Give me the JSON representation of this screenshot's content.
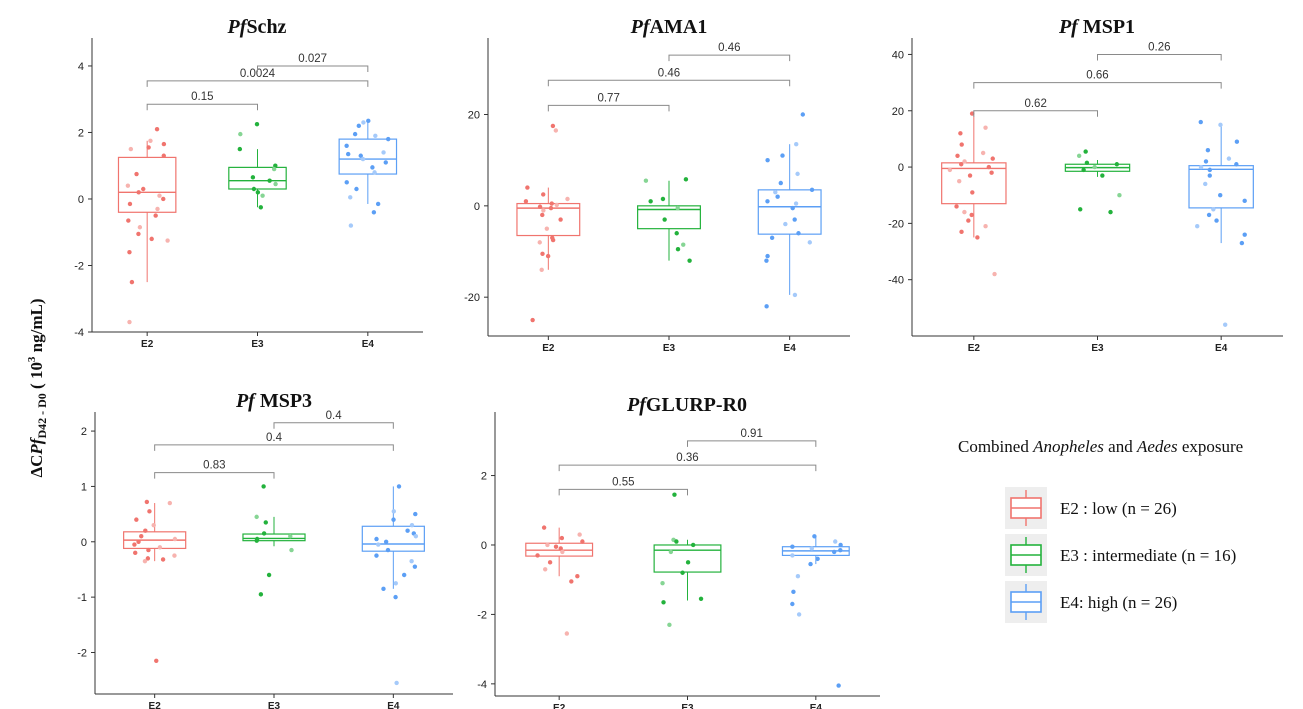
{
  "colors": {
    "E2": "#f0746e",
    "E3": "#23b23c",
    "E4": "#5c9ff5"
  },
  "y_axis_label": {
    "prefix": "ΔC",
    "italic": "Pf",
    "sub": "D42 - D0",
    "unit_open": " ( 10",
    "sup": "3",
    "unit_close": " ng/mL)"
  },
  "legend": {
    "title_parts": [
      "Combined ",
      "Anopheles",
      " and ",
      "Aedes",
      " exposure"
    ],
    "items": [
      {
        "group": "E2",
        "label": "E2 : low  (n = 26)"
      },
      {
        "group": "E3",
        "label": "E3 : intermediate (n = 16)"
      },
      {
        "group": "E4",
        "label": "E4: high (n = 26)"
      }
    ]
  },
  "chart_data": [
    {
      "type": "box",
      "title_italic": "Pf",
      "title_rest": "Schz",
      "categories": [
        "E2",
        "E3",
        "E4"
      ],
      "yticks": [
        -4,
        -2,
        0,
        2,
        4
      ],
      "ylim": [
        -4,
        4.6
      ],
      "boxes": [
        {
          "group": "E2",
          "q1": -0.4,
          "median": 0.2,
          "q3": 1.25,
          "whisker_low": -2.5,
          "whisker_high": 1.75
        },
        {
          "group": "E3",
          "q1": 0.3,
          "median": 0.55,
          "q3": 0.95,
          "whisker_low": -0.25,
          "whisker_high": 1.5
        },
        {
          "group": "E4",
          "q1": 0.75,
          "median": 1.2,
          "q3": 1.8,
          "whisker_low": -0.15,
          "whisker_high": 2.4
        }
      ],
      "points": {
        "E2": [
          2.1,
          1.75,
          1.65,
          1.55,
          1.5,
          1.3,
          0.75,
          0.4,
          0.3,
          0.2,
          0.1,
          0.0,
          -0.15,
          -0.3,
          -0.5,
          -0.65,
          -0.85,
          -1.05,
          -1.2,
          -1.25,
          -1.6,
          -2.5,
          -3.7
        ],
        "E3": [
          2.25,
          1.95,
          1.5,
          1.0,
          0.9,
          0.65,
          0.55,
          0.45,
          0.3,
          0.2,
          0.1,
          -0.25
        ],
        "E4": [
          2.35,
          2.3,
          2.2,
          1.95,
          1.9,
          1.8,
          1.6,
          1.4,
          1.35,
          1.3,
          1.2,
          1.1,
          0.95,
          0.8,
          0.5,
          0.3,
          0.05,
          -0.15,
          -0.4,
          -0.8
        ]
      },
      "comparisons": [
        {
          "from": "E2",
          "to": "E3",
          "label": "0.15",
          "y": 2.85
        },
        {
          "from": "E2",
          "to": "E4",
          "label": "0.0024",
          "y": 3.55
        },
        {
          "from": "E3",
          "to": "E4",
          "label": "0.027",
          "y": 4.0
        }
      ]
    },
    {
      "type": "box",
      "title_italic": "Pf",
      "title_rest": "AMA1",
      "categories": [
        "E2",
        "E3",
        "E4"
      ],
      "yticks": [
        -20,
        0,
        20
      ],
      "ylim": [
        -28.5,
        35
      ],
      "boxes": [
        {
          "group": "E2",
          "q1": -6.5,
          "median": -0.5,
          "q3": 0.5,
          "whisker_low": -14,
          "whisker_high": 4
        },
        {
          "group": "E3",
          "q1": -5,
          "median": -0.8,
          "q3": 0,
          "whisker_low": -12,
          "whisker_high": 5.5
        },
        {
          "group": "E4",
          "q1": -6.2,
          "median": -0.2,
          "q3": 3.5,
          "whisker_low": -19.5,
          "whisker_high": 13.5
        }
      ],
      "points": {
        "E2": [
          17.5,
          16.5,
          4,
          2.5,
          1.5,
          1,
          0.5,
          0.2,
          -0.2,
          -0.5,
          -1,
          -2,
          -3,
          -5,
          -7,
          -7.5,
          -8,
          -10.5,
          -11,
          -14,
          -25
        ],
        "E3": [
          5.8,
          5.5,
          1.5,
          1,
          -0.5,
          -3,
          -6,
          -8.5,
          -9.5,
          -12
        ],
        "E4": [
          20,
          13.5,
          11,
          10,
          7,
          5,
          3.5,
          3,
          2,
          1,
          0.5,
          -0.5,
          -3,
          -4,
          -6,
          -7,
          -8,
          -11,
          -12,
          -19.5,
          -22
        ]
      },
      "comparisons": [
        {
          "from": "E2",
          "to": "E3",
          "label": "0.77",
          "y": 22
        },
        {
          "from": "E2",
          "to": "E4",
          "label": "0.46",
          "y": 27.5
        },
        {
          "from": "E3",
          "to": "E4",
          "label": "0.46",
          "y": 33
        }
      ]
    },
    {
      "type": "box",
      "title_italic": "Pf",
      "title_rest": " MSP1",
      "categories": [
        "E2",
        "E3",
        "E4"
      ],
      "yticks": [
        -40,
        -20,
        0,
        20,
        40
      ],
      "ylim": [
        -60,
        43
      ],
      "boxes": [
        {
          "group": "E2",
          "q1": -13,
          "median": -0.5,
          "q3": 1.5,
          "whisker_low": -25,
          "whisker_high": 18
        },
        {
          "group": "E3",
          "q1": -1.5,
          "median": -0.2,
          "q3": 1,
          "whisker_low": -3.5,
          "whisker_high": 2.5
        },
        {
          "group": "E4",
          "q1": -14.5,
          "median": -0.8,
          "q3": 0.5,
          "whisker_low": -27,
          "whisker_high": 15.5
        }
      ],
      "points": {
        "E2": [
          19,
          14,
          12,
          8,
          5,
          4,
          3,
          2,
          1,
          0,
          -1,
          -2,
          -3,
          -5,
          -9,
          -14,
          -16,
          -17,
          -19,
          -21,
          -23,
          -25,
          -38
        ],
        "E3": [
          5.5,
          4,
          1.5,
          1,
          0,
          -1,
          -3,
          -10,
          -15,
          -16
        ],
        "E4": [
          16,
          15,
          9,
          6,
          3,
          2,
          1,
          0,
          -1,
          -3,
          -6,
          -10,
          -12,
          -15,
          -17,
          -19,
          -21,
          -24,
          -27,
          -56
        ]
      },
      "comparisons": [
        {
          "from": "E2",
          "to": "E3",
          "label": "0.62",
          "y": 20
        },
        {
          "from": "E2",
          "to": "E4",
          "label": "0.66",
          "y": 30
        },
        {
          "from": "E3",
          "to": "E4",
          "label": "0.26",
          "y": 40
        }
      ]
    },
    {
      "type": "box",
      "title_italic": "Pf",
      "title_rest": " MSP3",
      "categories": [
        "E2",
        "E3",
        "E4"
      ],
      "yticks": [
        -2,
        -1,
        0,
        1,
        2
      ],
      "ylim": [
        -2.75,
        2.2
      ],
      "boxes": [
        {
          "group": "E2",
          "q1": -0.12,
          "median": 0.03,
          "q3": 0.18,
          "whisker_low": -0.35,
          "whisker_high": 0.7
        },
        {
          "group": "E3",
          "q1": 0.02,
          "median": 0.06,
          "q3": 0.14,
          "whisker_low": -0.08,
          "whisker_high": 0.45
        },
        {
          "group": "E4",
          "q1": -0.17,
          "median": -0.04,
          "q3": 0.28,
          "whisker_low": -0.85,
          "whisker_high": 1.0
        }
      ],
      "points": {
        "E2": [
          0.72,
          0.7,
          0.55,
          0.4,
          0.3,
          0.2,
          0.1,
          0.05,
          0.0,
          -0.05,
          -0.1,
          -0.15,
          -0.2,
          -0.25,
          -0.3,
          -0.32,
          -0.35,
          -2.15
        ],
        "E3": [
          1.0,
          0.45,
          0.35,
          0.15,
          0.1,
          0.05,
          0.02,
          -0.15,
          -0.6,
          -0.95
        ],
        "E4": [
          1.0,
          0.55,
          0.5,
          0.4,
          0.3,
          0.2,
          0.15,
          0.1,
          0.05,
          0.0,
          -0.05,
          -0.15,
          -0.25,
          -0.35,
          -0.45,
          -0.6,
          -0.75,
          -0.85,
          -1.0,
          -2.55
        ]
      },
      "comparisons": [
        {
          "from": "E2",
          "to": "E3",
          "label": "0.83",
          "y": 1.25
        },
        {
          "from": "E2",
          "to": "E4",
          "label": "0.4",
          "y": 1.75
        },
        {
          "from": "E3",
          "to": "E4",
          "label": "0.4",
          "y": 2.15
        }
      ]
    },
    {
      "type": "box",
      "title_italic": "Pf",
      "title_rest": "GLURP-R0",
      "categories": [
        "E2",
        "E3",
        "E4"
      ],
      "yticks": [
        -4,
        -2,
        0,
        2
      ],
      "ylim": [
        -4.35,
        3.6
      ],
      "boxes": [
        {
          "group": "E2",
          "q1": -0.32,
          "median": -0.15,
          "q3": 0.05,
          "whisker_low": -0.9,
          "whisker_high": 0.5
        },
        {
          "group": "E3",
          "q1": -0.78,
          "median": -0.15,
          "q3": 0.0,
          "whisker_low": -1.6,
          "whisker_high": 0.15
        },
        {
          "group": "E4",
          "q1": -0.3,
          "median": -0.17,
          "q3": -0.05,
          "whisker_low": -0.55,
          "whisker_high": 0.25
        }
      ],
      "points": {
        "E2": [
          0.5,
          0.3,
          0.2,
          0.1,
          0.0,
          -0.05,
          -0.1,
          -0.2,
          -0.3,
          -0.5,
          -0.7,
          -0.9,
          -1.05,
          -2.55
        ],
        "E3": [
          1.45,
          0.15,
          0.1,
          0.0,
          -0.2,
          -0.5,
          -0.8,
          -1.1,
          -1.55,
          -1.65,
          -2.3
        ],
        "E4": [
          0.25,
          0.1,
          0.0,
          -0.05,
          -0.1,
          -0.15,
          -0.2,
          -0.3,
          -0.4,
          -0.55,
          -0.9,
          -1.35,
          -1.7,
          -2.0,
          -4.05
        ]
      },
      "comparisons": [
        {
          "from": "E2",
          "to": "E3",
          "label": "0.55",
          "y": 1.6
        },
        {
          "from": "E2",
          "to": "E4",
          "label": "0.36",
          "y": 2.3
        },
        {
          "from": "E3",
          "to": "E4",
          "label": "0.91",
          "y": 3.0
        }
      ]
    }
  ]
}
